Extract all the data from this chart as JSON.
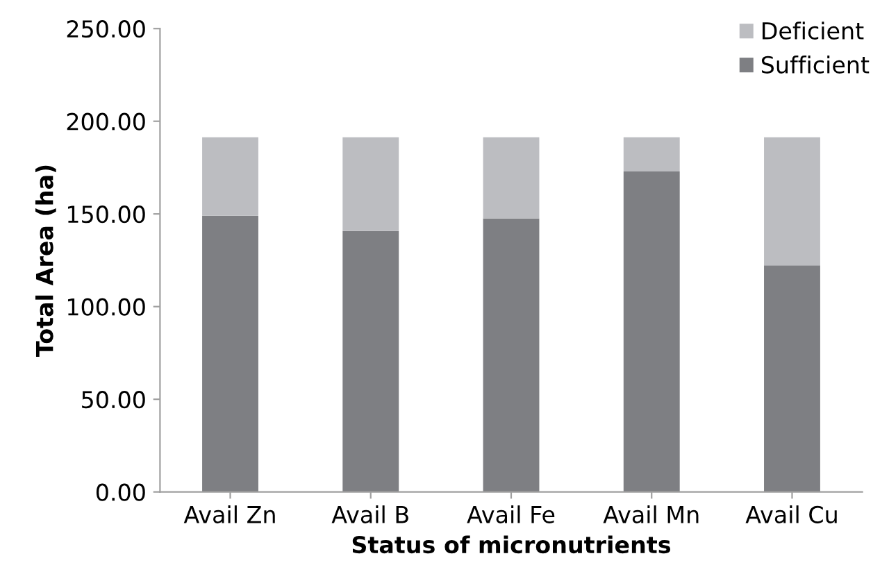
{
  "chart_data": {
    "type": "bar",
    "stacked": true,
    "xlabel": "Status of micronutrients",
    "ylabel": "Total Area (ha)",
    "categories": [
      "Avail Zn",
      "Avail B",
      "Avail Fe",
      "Avail Mn",
      "Avail Cu"
    ],
    "series": [
      {
        "name": "Sufficient",
        "color": "#7e7f83",
        "values": [
          149.0,
          140.8,
          147.5,
          172.9,
          122.3
        ]
      },
      {
        "name": "Deficient",
        "color": "#bcbdc1",
        "values": [
          42.4,
          50.6,
          43.9,
          18.5,
          69.1
        ]
      }
    ],
    "ylim": [
      0,
      250
    ],
    "yticks": [
      {
        "value": 0,
        "label": "0.00"
      },
      {
        "value": 50,
        "label": "50.00"
      },
      {
        "value": 100,
        "label": "100.00"
      },
      {
        "value": 150,
        "label": "150.00"
      },
      {
        "value": 200,
        "label": "200.00"
      },
      {
        "value": 250,
        "label": "250.00"
      }
    ],
    "grid": false,
    "legend": "top right"
  }
}
